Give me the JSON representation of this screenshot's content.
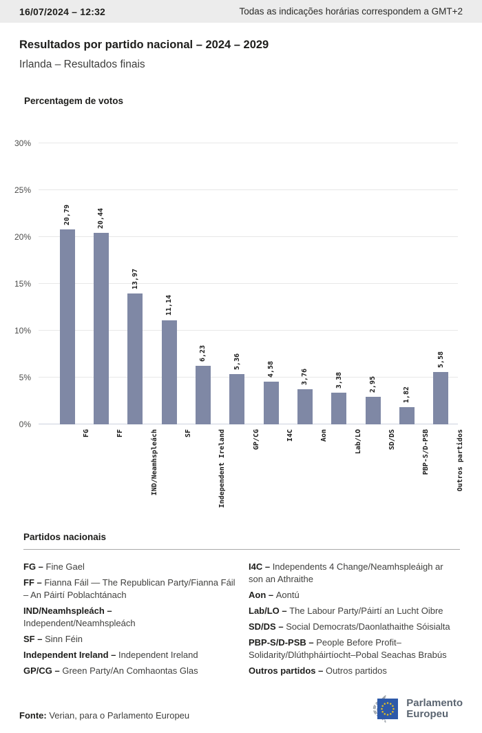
{
  "header": {
    "datetime": "16/07/2024 – 12:32",
    "timezone_note": "Todas as indicações horárias correspondem a GMT+2"
  },
  "title": "Resultados por partido nacional – 2024 – 2029",
  "subtitle": "Irlanda – Resultados finais",
  "chart_data": {
    "type": "bar",
    "title": "Percentagem de votos",
    "categories": [
      "FG",
      "FF",
      "IND/Neamhspleách",
      "SF",
      "Independent Ireland",
      "GP/CG",
      "I4C",
      "Aon",
      "Lab/LO",
      "SD/DS",
      "PBP-S/D-PSB",
      "Outros partidos"
    ],
    "values": [
      20.79,
      20.44,
      13.97,
      11.14,
      6.23,
      5.36,
      4.58,
      3.76,
      3.38,
      2.95,
      1.82,
      5.58
    ],
    "value_labels": [
      "20,79",
      "20,44",
      "13,97",
      "11,14",
      "6,23",
      "5,36",
      "4,58",
      "3,76",
      "3,38",
      "2,95",
      "1,82",
      "5,58"
    ],
    "xlabel": "",
    "ylabel": "Percentagem de votos",
    "ylim": [
      0,
      30
    ],
    "yticks": [
      0,
      5,
      10,
      15,
      20,
      25,
      30
    ],
    "ytick_labels": [
      "0%",
      "5%",
      "10%",
      "15%",
      "20%",
      "25%",
      "30%"
    ],
    "grid": true,
    "legend_position": "none",
    "bar_color": "#7f88a5"
  },
  "legend": {
    "heading": "Partidos nacionais",
    "columns": [
      [
        {
          "abbr": "FG",
          "name": "Fine Gael"
        },
        {
          "abbr": "FF",
          "name": "Fianna Fáil — The Republican Party/Fianna Fáil\n– An Páirtí Poblachtánach"
        },
        {
          "abbr": "IND/Neamhspleách",
          "name": "\nIndependent/Neamhspleách"
        },
        {
          "abbr": "SF",
          "name": "Sinn Féin"
        },
        {
          "abbr": "Independent Ireland",
          "name": "Independent Ireland"
        },
        {
          "abbr": "GP/CG",
          "name": "Green Party/An Comhaontas Glas"
        }
      ],
      [
        {
          "abbr": "I4C",
          "name": "Independents 4 Change/Neamhspleáigh ar\nson an Athraithe"
        },
        {
          "abbr": "Aon",
          "name": "Aontú"
        },
        {
          "abbr": "Lab/LO",
          "name": "The Labour Party/Páirtí an Lucht Oibre"
        },
        {
          "abbr": "SD/DS",
          "name": "Social Democrats/Daonlathaithe Sóisialta"
        },
        {
          "abbr": "PBP-S/D-PSB",
          "name": "People Before Profit–\nSolidarity/Dlúthpháirtíocht–Pobal Seachas Brabús"
        },
        {
          "abbr": "Outros partidos",
          "name": "Outros partidos"
        }
      ]
    ]
  },
  "footer": {
    "source_label": "Fonte:",
    "source_text": " Verian, para o Parlamento Europeu",
    "logo_line1": "Parlamento",
    "logo_line2": "Europeu",
    "logo_colors": {
      "blue": "#2d59a9",
      "stars": "#e9c21d",
      "arcs": "#9aa1a8",
      "text": "#5a6470"
    }
  }
}
